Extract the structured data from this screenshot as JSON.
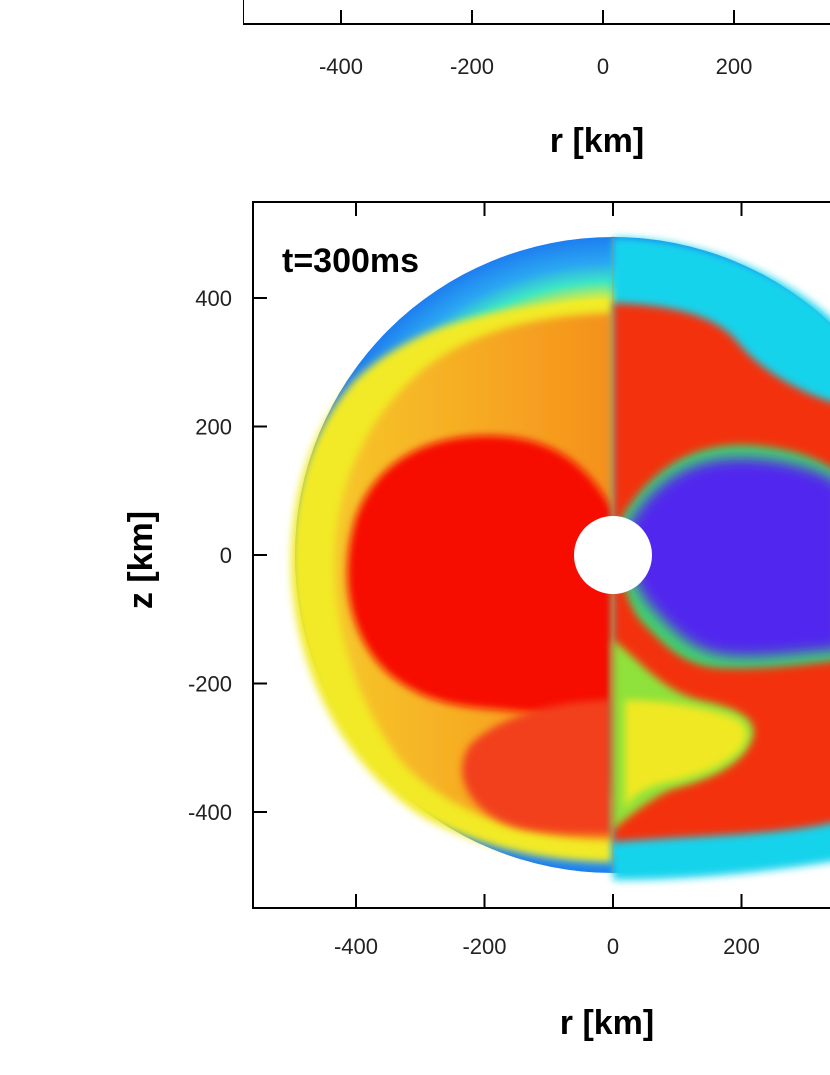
{
  "chart_data": [
    {
      "type": "heatmap",
      "title": "",
      "xlabel": "r [km]",
      "ylabel": "",
      "xticks": [
        -400,
        -200,
        0,
        200
      ],
      "yticks": [],
      "xlim": [
        -550,
        550
      ],
      "partially_visible": true
    },
    {
      "type": "heatmap",
      "title": "",
      "label": "t=300ms",
      "xlabel": "r [km]",
      "ylabel": "z [km]",
      "xticks": [
        -400,
        -200,
        0,
        200
      ],
      "yticks": [
        400,
        200,
        0,
        -200,
        -400
      ],
      "xlim": [
        -550,
        550
      ],
      "ylim": [
        -550,
        550
      ],
      "grid": false,
      "legend": "none",
      "shock_radius_km": 490,
      "inner_boundary_radius_km": 60,
      "colors": {
        "outer": "#1e7ef0",
        "cyan": "#15d8ee",
        "green": "#46e84a",
        "yellow": "#f0ee22",
        "orange": "#f49a1a",
        "red": "#f60a00",
        "blue": "#4b2cf0",
        "purple": "#7a1ee6",
        "white": "#ffffff"
      }
    }
  ]
}
